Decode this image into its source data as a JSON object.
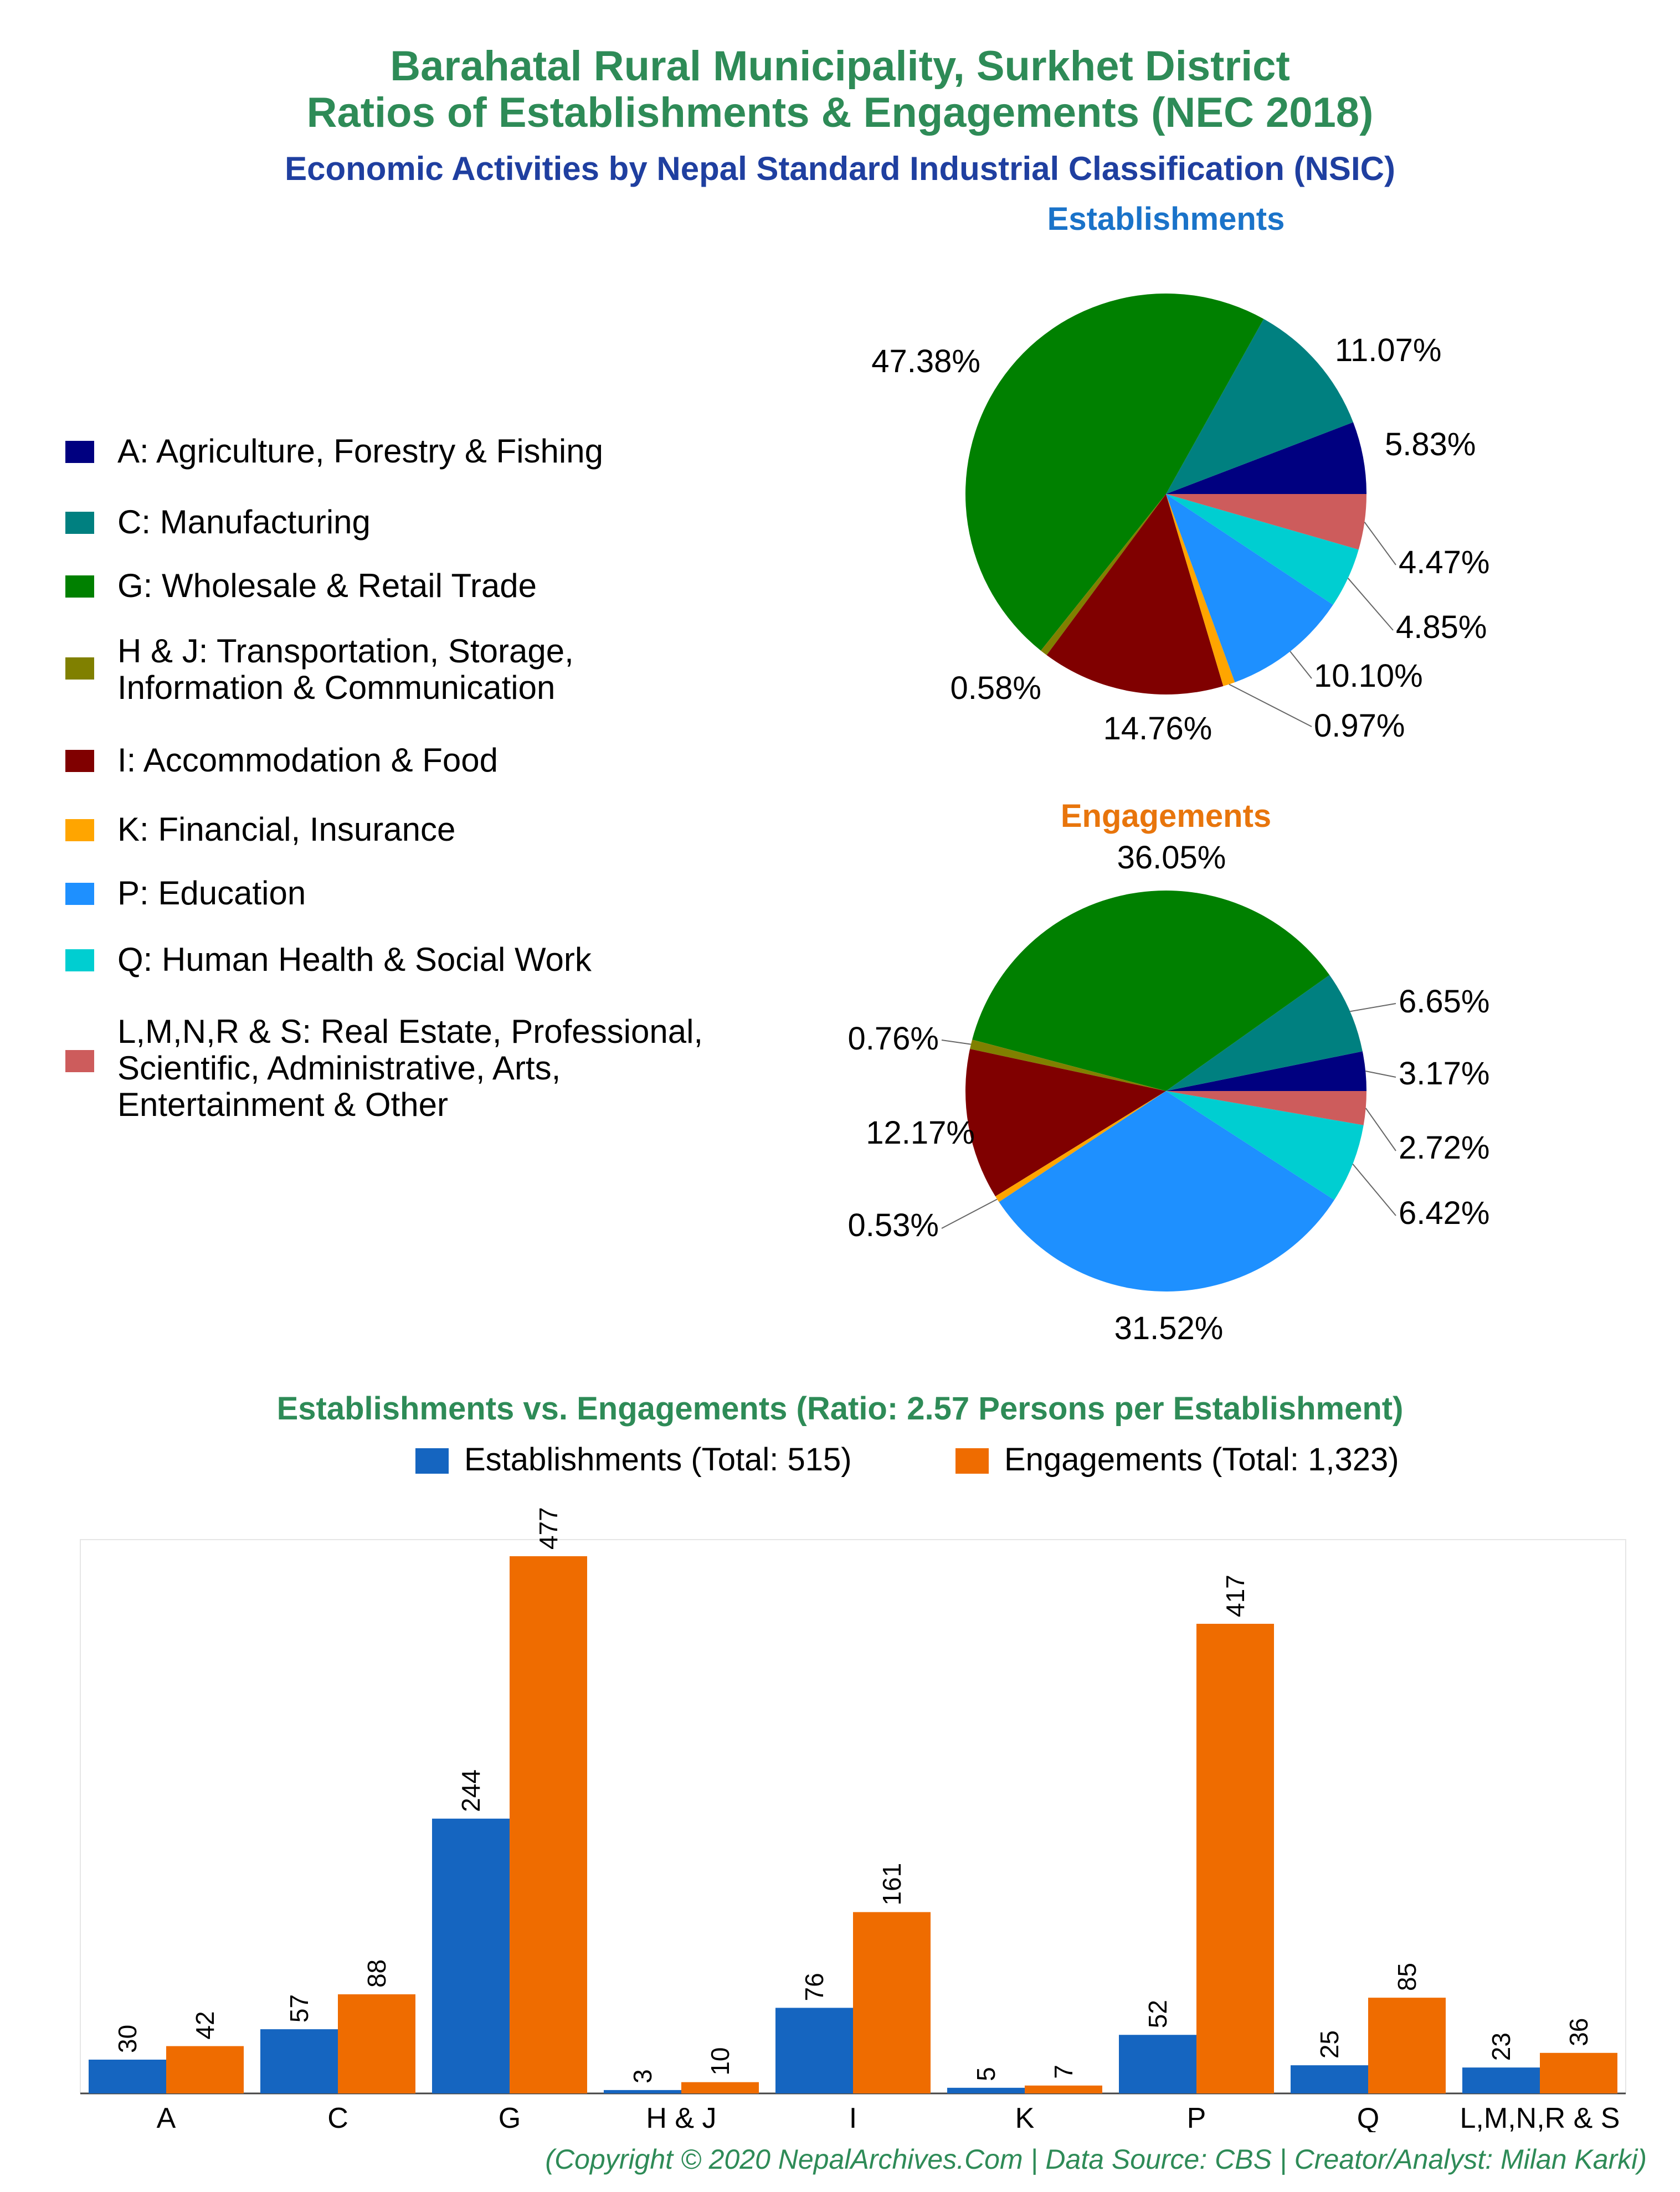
{
  "header": {
    "title_line1": "Barahatal Rural Municipality, Surkhet District",
    "title_line2": "Ratios of Establishments & Engagements (NEC 2018)",
    "subtitle": "Economic Activities by Nepal Standard Industrial Classification (NSIC)"
  },
  "colors": {
    "title": "#2e8b57",
    "subtitle": "#1f3fa0",
    "establishments": "#1565c0",
    "engagements": "#ef6c00"
  },
  "legend": [
    {
      "code": "A",
      "label": "A: Agriculture, Forestry & Fishing",
      "color": "#000080"
    },
    {
      "code": "C",
      "label": "C: Manufacturing",
      "color": "#008080"
    },
    {
      "code": "G",
      "label": "G: Wholesale & Retail Trade",
      "color": "#008000"
    },
    {
      "code": "HJ",
      "label": "H & J: Transportation, Storage,\nInformation & Communication",
      "color": "#808000"
    },
    {
      "code": "I",
      "label": "I: Accommodation & Food",
      "color": "#800000"
    },
    {
      "code": "K",
      "label": "K: Financial, Insurance",
      "color": "#ffa500"
    },
    {
      "code": "P",
      "label": "P: Education",
      "color": "#1e90ff"
    },
    {
      "code": "Q",
      "label": "Q: Human Health & Social Work",
      "color": "#00ced1"
    },
    {
      "code": "LMNRS",
      "label": "L,M,N,R & S: Real Estate, Professional,\nScientific, Administrative, Arts,\nEntertainment & Other",
      "color": "#cd5c5c"
    }
  ],
  "chart_data": [
    {
      "type": "pie",
      "title": "Establishments",
      "title_color": "#1a73c9",
      "categories": [
        "A",
        "C",
        "G",
        "H & J",
        "I",
        "K",
        "P",
        "Q",
        "L,M,N,R & S"
      ],
      "values": [
        5.83,
        11.07,
        47.38,
        0.58,
        14.76,
        0.97,
        10.1,
        4.85,
        4.47
      ],
      "labels": [
        "5.83%",
        "11.07%",
        "47.38%",
        "0.58%",
        "14.76%",
        "0.97%",
        "10.10%",
        "4.85%",
        "4.47%"
      ]
    },
    {
      "type": "pie",
      "title": "Engagements",
      "title_color": "#e8750c",
      "categories": [
        "A",
        "C",
        "G",
        "H & J",
        "I",
        "K",
        "P",
        "Q",
        "L,M,N,R & S"
      ],
      "values": [
        3.17,
        6.65,
        36.05,
        0.76,
        12.17,
        0.53,
        31.52,
        6.42,
        2.72
      ],
      "labels": [
        "3.17%",
        "6.65%",
        "36.05%",
        "0.76%",
        "12.17%",
        "0.53%",
        "31.52%",
        "6.42%",
        "2.72%"
      ]
    },
    {
      "type": "bar",
      "title": "Establishments vs. Engagements (Ratio: 2.57 Persons per Establishment)",
      "categories": [
        "A",
        "C",
        "G",
        "H & J",
        "I",
        "K",
        "P",
        "Q",
        "L,M,N,R & S"
      ],
      "series": [
        {
          "name": "Establishments (Total: 515)",
          "values": [
            30,
            57,
            244,
            3,
            76,
            5,
            52,
            25,
            23
          ],
          "color": "#1565c0"
        },
        {
          "name": "Engagements (Total: 1,323)",
          "values": [
            42,
            88,
            477,
            10,
            161,
            7,
            417,
            85,
            36
          ],
          "color": "#ef6c00"
        }
      ],
      "ylim": [
        0,
        477
      ],
      "grid": false,
      "legend_position": "top-right"
    }
  ],
  "footer": "(Copyright © 2020 NepalArchives.Com | Data Source: CBS | Creator/Analyst: Milan Karki)"
}
